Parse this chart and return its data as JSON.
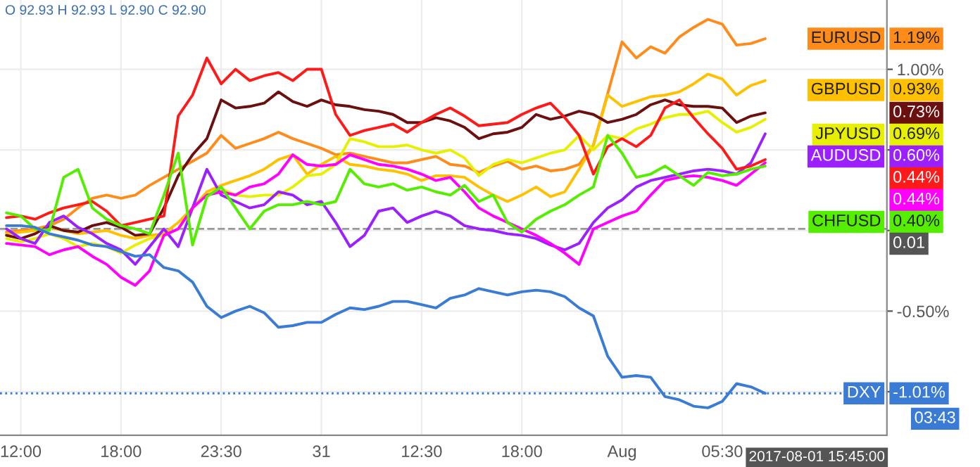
{
  "chart_data": {
    "type": "line",
    "grid": true,
    "line_style": "solid",
    "legend": "right",
    "categories": [
      null,
      "12:00",
      null,
      null,
      null,
      null,
      null,
      null,
      "18:00",
      null,
      null,
      null,
      null,
      null,
      null,
      "23:30",
      null,
      null,
      null,
      null,
      null,
      null,
      "31",
      null,
      null,
      null,
      null,
      null,
      null,
      "12:30",
      null,
      null,
      null,
      null,
      null,
      null,
      "18:00",
      null,
      null,
      null,
      null,
      null,
      null,
      "Aug",
      null,
      null,
      null,
      null,
      null,
      null,
      "05:30",
      null,
      null,
      null
    ],
    "ylim": [
      -1.27,
      1.43
    ],
    "yticks": [
      {
        "value": 1.0,
        "label": "1.00%"
      },
      {
        "value": 0.5,
        "label": null
      },
      {
        "value": 0,
        "label": null
      },
      {
        "value": -0.5,
        "label": "-0.50%"
      },
      {
        "value": -1.0,
        "label": null
      }
    ],
    "series": [
      {
        "name": "EURUSD",
        "color": "#ff8c1a",
        "values": [
          -0.01,
          0.0,
          0.01,
          0.03,
          0.07,
          0.14,
          0.2,
          0.22,
          0.2,
          0.22,
          0.28,
          0.33,
          0.38,
          0.43,
          0.48,
          0.59,
          0.51,
          0.54,
          0.57,
          0.61,
          0.57,
          0.54,
          0.51,
          0.47,
          0.48,
          0.46,
          0.44,
          0.42,
          0.42,
          0.44,
          0.46,
          0.41,
          0.4,
          0.36,
          0.4,
          0.43,
          0.38,
          0.4,
          0.37,
          0.38,
          0.41,
          0.53,
          0.85,
          1.17,
          1.07,
          1.14,
          1.1,
          1.2,
          1.26,
          1.31,
          1.28,
          1.15,
          1.16,
          1.19
        ]
      },
      {
        "name": "GBPUSD",
        "color": "#ffc000",
        "values": [
          -0.02,
          -0.01,
          0.0,
          0.02,
          0.0,
          -0.02,
          -0.01,
          0.0,
          -0.03,
          -0.05,
          -0.03,
          -0.02,
          0.05,
          0.14,
          0.24,
          0.28,
          0.31,
          0.34,
          0.38,
          0.44,
          0.47,
          0.35,
          0.41,
          0.46,
          0.41,
          0.4,
          0.38,
          0.37,
          0.35,
          0.31,
          0.34,
          0.34,
          0.33,
          0.27,
          0.22,
          0.18,
          0.22,
          0.27,
          0.21,
          0.24,
          0.38,
          0.53,
          0.84,
          0.77,
          0.8,
          0.83,
          0.84,
          0.86,
          0.91,
          0.97,
          0.94,
          0.84,
          0.9,
          0.93
        ]
      },
      {
        "color": "#6b0f0f",
        "values": [
          -0.03,
          -0.05,
          -0.02,
          0.03,
          0.0,
          -0.01,
          0.03,
          0.05,
          0.02,
          -0.03,
          -0.02,
          0.14,
          0.34,
          0.47,
          0.57,
          0.81,
          0.76,
          0.77,
          0.79,
          0.86,
          0.8,
          0.77,
          0.81,
          0.78,
          0.77,
          0.75,
          0.74,
          0.72,
          0.67,
          0.67,
          0.7,
          0.68,
          0.64,
          0.57,
          0.6,
          0.61,
          0.64,
          0.72,
          0.69,
          0.71,
          0.74,
          0.72,
          0.67,
          0.69,
          0.72,
          0.78,
          0.81,
          0.78,
          0.77,
          0.77,
          0.76,
          0.67,
          0.71,
          0.73
        ]
      },
      {
        "name": "JPYUSD",
        "color": "#e6f000",
        "values": [
          -0.05,
          -0.07,
          -0.05,
          -0.02,
          -0.05,
          -0.1,
          -0.08,
          -0.1,
          -0.14,
          -0.09,
          -0.05,
          -0.03,
          0.01,
          0.14,
          0.22,
          0.26,
          0.22,
          0.21,
          0.22,
          0.22,
          0.27,
          0.34,
          0.35,
          0.41,
          0.57,
          0.55,
          0.52,
          0.52,
          0.53,
          0.5,
          0.48,
          0.5,
          0.45,
          0.34,
          0.41,
          0.44,
          0.42,
          0.45,
          0.48,
          0.5,
          0.59,
          0.5,
          0.59,
          0.57,
          0.63,
          0.66,
          0.7,
          0.72,
          0.72,
          0.74,
          0.67,
          0.61,
          0.64,
          0.69
        ]
      },
      {
        "name": "AUDUSD",
        "color": "#9b1fff",
        "values": [
          0.01,
          -0.05,
          -0.08,
          0.05,
          0.09,
          0.02,
          -0.02,
          -0.08,
          -0.12,
          -0.21,
          -0.1,
          0.01,
          -0.1,
          0.14,
          0.38,
          0.22,
          0.18,
          0.14,
          0.16,
          0.24,
          0.22,
          0.16,
          0.18,
          0.05,
          -0.1,
          -0.03,
          0.12,
          0.14,
          0.05,
          0.09,
          0.12,
          0.09,
          0.03,
          0.01,
          0.0,
          -0.02,
          -0.03,
          -0.05,
          -0.09,
          -0.12,
          -0.08,
          0.05,
          0.14,
          0.19,
          0.27,
          0.31,
          0.33,
          0.35,
          0.37,
          0.38,
          0.37,
          0.35,
          0.42,
          0.6
        ]
      },
      {
        "color": "#ff1a1a",
        "values": [
          0.08,
          0.09,
          0.07,
          0.11,
          0.14,
          0.16,
          0.18,
          0.12,
          0.03,
          0.05,
          0.07,
          0.09,
          0.71,
          0.84,
          1.07,
          0.91,
          1.0,
          0.93,
          0.96,
          0.98,
          0.93,
          1.0,
          1.0,
          0.72,
          0.59,
          0.62,
          0.64,
          0.66,
          0.61,
          0.67,
          0.72,
          0.76,
          0.71,
          0.65,
          0.66,
          0.67,
          0.72,
          0.76,
          0.79,
          0.7,
          0.59,
          0.35,
          0.52,
          0.57,
          0.52,
          0.59,
          0.76,
          0.81,
          0.7,
          0.6,
          0.51,
          0.38,
          0.4,
          0.44
        ]
      },
      {
        "color": "#ff00ff",
        "values": [
          -0.08,
          -0.09,
          -0.1,
          -0.15,
          -0.12,
          -0.1,
          -0.16,
          -0.21,
          -0.29,
          -0.34,
          -0.25,
          -0.03,
          0.01,
          0.14,
          0.22,
          0.24,
          0.22,
          0.27,
          0.29,
          0.35,
          0.47,
          0.41,
          0.4,
          0.41,
          0.47,
          0.44,
          0.41,
          0.4,
          0.38,
          0.35,
          0.31,
          0.33,
          0.24,
          0.14,
          0.09,
          0.05,
          0.01,
          -0.03,
          -0.08,
          -0.14,
          -0.21,
          0.01,
          0.05,
          0.09,
          0.12,
          0.22,
          0.31,
          0.33,
          0.34,
          0.33,
          0.31,
          0.28,
          0.35,
          0.42
        ]
      },
      {
        "name": "CHFUSD",
        "color": "#55ee00",
        "values": [
          0.11,
          0.09,
          0.01,
          0.0,
          0.33,
          0.38,
          0.14,
          0.07,
          0.03,
          0.01,
          -0.02,
          0.22,
          0.48,
          -0.09,
          0.21,
          0.27,
          0.14,
          0.01,
          0.12,
          0.16,
          0.16,
          0.18,
          0.16,
          0.18,
          0.38,
          0.29,
          0.27,
          0.29,
          0.25,
          0.27,
          0.24,
          0.22,
          0.28,
          0.18,
          0.22,
          0.05,
          -0.01,
          0.07,
          0.12,
          0.16,
          0.22,
          0.27,
          0.59,
          0.48,
          0.33,
          0.35,
          0.4,
          0.34,
          0.28,
          0.36,
          0.34,
          0.35,
          0.38,
          0.4
        ]
      },
      {
        "name": "DXY",
        "color": "#3a7bd5",
        "values": [
          0.03,
          0.03,
          0.02,
          -0.02,
          -0.04,
          -0.06,
          -0.09,
          -0.1,
          -0.13,
          -0.16,
          -0.15,
          -0.23,
          -0.25,
          -0.32,
          -0.47,
          -0.54,
          -0.5,
          -0.47,
          -0.51,
          -0.6,
          -0.59,
          -0.57,
          -0.57,
          -0.52,
          -0.48,
          -0.49,
          -0.47,
          -0.44,
          -0.44,
          -0.46,
          -0.48,
          -0.42,
          -0.4,
          -0.36,
          -0.38,
          -0.4,
          -0.38,
          -0.37,
          -0.38,
          -0.41,
          -0.48,
          -0.53,
          -0.78,
          -0.91,
          -0.9,
          -0.91,
          -1.03,
          -1.05,
          -1.09,
          -1.1,
          -1.06,
          -0.95,
          -0.97,
          -1.01
        ]
      }
    ],
    "ref_lines": [
      {
        "axis": "y",
        "value": 0.01,
        "label": "0.01",
        "color": "#999999",
        "line_style": "dashed"
      },
      {
        "axis": "y",
        "value": -1.01,
        "color": "#3a7bd5",
        "line_style": "dotted"
      }
    ],
    "annotations": [
      "O 92.93 H 92.93 L 92.90 C 92.90",
      "1.19%",
      "0.93%",
      "0.73%",
      "0.69%",
      "0.60%",
      "0.44%",
      "0.44%",
      "0.40%",
      "-1.01%",
      "2017-08-01 15:45:00",
      "03:43"
    ]
  }
}
